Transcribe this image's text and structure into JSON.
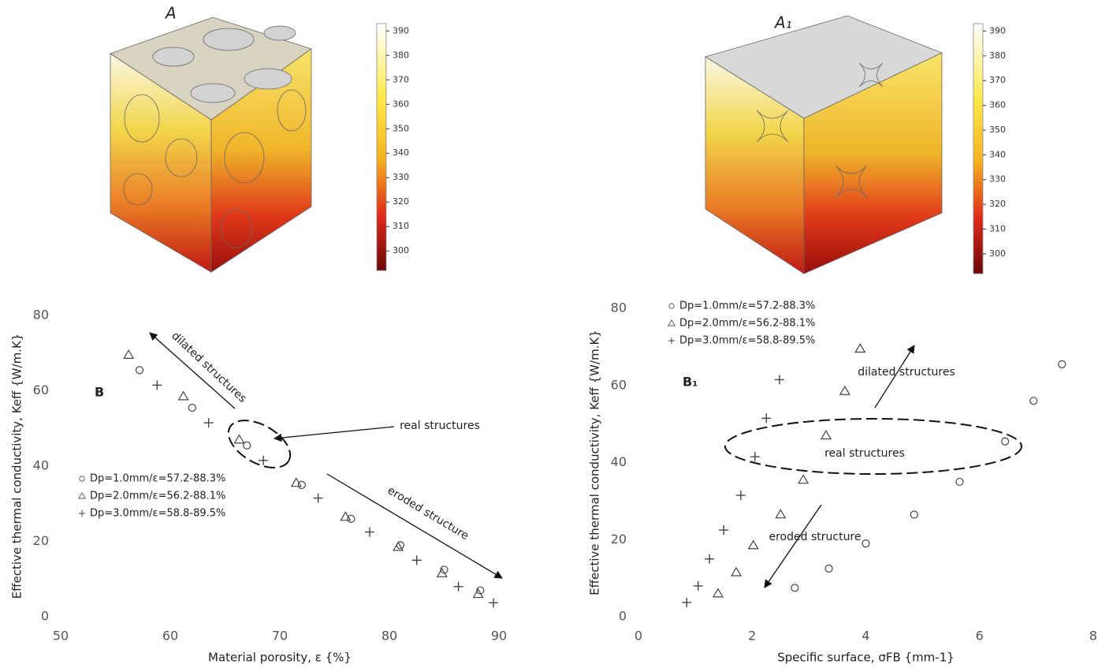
{
  "chart_data": [
    {
      "type": "colorbar",
      "title": "A",
      "ylim": [
        292,
        393
      ],
      "yticks": [
        300,
        310,
        320,
        330,
        340,
        350,
        360,
        370,
        380,
        390
      ]
    },
    {
      "type": "colorbar",
      "title": "A₁",
      "ylim": [
        292,
        393
      ],
      "yticks": [
        300,
        310,
        320,
        330,
        340,
        350,
        360,
        370,
        380,
        390
      ]
    },
    {
      "type": "scatter",
      "panel_label": "B",
      "xlabel": "Material porosity, ε {%}",
      "ylabel": "Effective thermal conductivity, Keff {W/m.K}",
      "xlim": [
        50,
        90
      ],
      "xticks": [
        50,
        60,
        70,
        80,
        90
      ],
      "ylim": [
        0,
        80
      ],
      "yticks": [
        0,
        20,
        40,
        60,
        80
      ],
      "grid": false,
      "annotations": [
        "dilated structures",
        "real structures",
        "eroded structure"
      ],
      "series": [
        {
          "name": "Dp=1.0mm/ε=57.2-88.3%",
          "marker": "circle",
          "color": "#444",
          "x": [
            57.2,
            62,
            67,
            72,
            76.5,
            81,
            85,
            88.3
          ],
          "values": [
            65.5,
            55.5,
            45.5,
            35,
            26,
            19,
            12.5,
            7
          ]
        },
        {
          "name": "Dp=2.0mm/ε=56.2-88.1%",
          "marker": "triangle",
          "color": "#444",
          "x": [
            56.2,
            61.2,
            66.3,
            71.5,
            76,
            80.8,
            84.8,
            88.1
          ],
          "values": [
            69.5,
            58.5,
            47,
            35.5,
            26.5,
            18.5,
            11.5,
            6
          ]
        },
        {
          "name": "Dp=3.0mm/ε=58.8-89.5%",
          "marker": "plus",
          "color": "#444",
          "x": [
            58.8,
            63.5,
            68.5,
            73.5,
            78.2,
            82.5,
            86.3,
            89.5
          ],
          "values": [
            61.5,
            51.5,
            41.5,
            31.5,
            22.5,
            15,
            8,
            3.7
          ]
        }
      ]
    },
    {
      "type": "scatter",
      "panel_label": "B₁",
      "xlabel": "Specific surface, σFB {mm-1}",
      "ylabel": "Effective thermal conductivity, Keff {W/m.K}",
      "xlim": [
        0,
        8
      ],
      "xticks": [
        0,
        2,
        4,
        6,
        8
      ],
      "ylim": [
        0,
        80
      ],
      "yticks": [
        0,
        20,
        40,
        60,
        80
      ],
      "grid": false,
      "annotations": [
        "dilated structures",
        "real structures",
        "eroded structure"
      ],
      "series": [
        {
          "name": "Dp=1.0mm/ε=57.2-88.3%",
          "marker": "circle",
          "color": "#444",
          "x": [
            2.75,
            3.35,
            4.0,
            4.85,
            5.65,
            6.45,
            6.95,
            7.45
          ],
          "values": [
            7.5,
            12.5,
            19,
            26.5,
            35,
            45.5,
            56,
            65.5
          ]
        },
        {
          "name": "Dp=2.0mm/ε=56.2-88.1%",
          "marker": "triangle",
          "color": "#444",
          "x": [
            1.4,
            1.72,
            2.02,
            2.5,
            2.9,
            3.3,
            3.63,
            3.9
          ],
          "values": [
            6,
            11.5,
            18.5,
            26.5,
            35.5,
            47,
            58.5,
            69.5
          ]
        },
        {
          "name": "Dp=3.0mm/ε=58.8-89.5%",
          "marker": "plus",
          "color": "#444",
          "x": [
            0.85,
            1.05,
            1.25,
            1.5,
            1.8,
            2.05,
            2.25,
            2.48
          ],
          "values": [
            3.7,
            8,
            15,
            22.5,
            31.5,
            41.5,
            51.5,
            61.5
          ]
        }
      ]
    }
  ]
}
